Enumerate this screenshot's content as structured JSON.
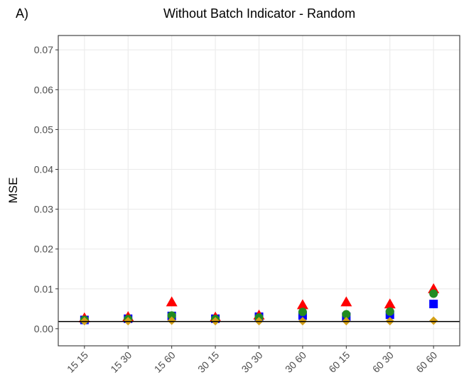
{
  "chart_data": {
    "type": "scatter",
    "panel_label": "A)",
    "title": "Without Batch Indicator - Random",
    "y_label": "MSE",
    "categories": [
      "15 15",
      "15 30",
      "15 60",
      "30 15",
      "30 30",
      "30 60",
      "60 15",
      "60 30",
      "60 60"
    ],
    "series": [
      {
        "color": "#0000ff",
        "marker": "square",
        "values": [
          0.0022,
          0.0025,
          0.0032,
          0.0025,
          0.003,
          0.0033,
          0.003,
          0.0035,
          0.0062
        ]
      },
      {
        "color": "#ff0000",
        "marker": "triangle",
        "values": [
          0.0025,
          0.0028,
          0.0065,
          0.0027,
          0.0032,
          0.0058,
          0.0065,
          0.006,
          0.0098
        ]
      },
      {
        "color": "#228b22",
        "marker": "circle",
        "values": [
          0.0022,
          0.0024,
          0.0033,
          0.0024,
          0.0028,
          0.0042,
          0.0036,
          0.0043,
          0.0088
        ]
      },
      {
        "color": "#d4a017",
        "marker": "diamond",
        "values": [
          0.0019,
          0.0019,
          0.002,
          0.0019,
          0.0019,
          0.0019,
          0.0019,
          0.0019,
          0.002
        ]
      }
    ],
    "hline": 0.0018,
    "ylim": [
      -0.0043,
      0.0736
    ],
    "yticks": [
      {
        "value": 0,
        "label": "0.00"
      },
      {
        "value": 0.01,
        "label": "0.01"
      },
      {
        "value": 0.02,
        "label": "0.02"
      },
      {
        "value": 0.03,
        "label": "0.03"
      },
      {
        "value": 0.04,
        "label": "0.04"
      },
      {
        "value": 0.05,
        "label": "0.05"
      },
      {
        "value": 0.06,
        "label": "0.06"
      },
      {
        "value": 0.07,
        "label": "0.07"
      }
    ],
    "grid": true
  }
}
